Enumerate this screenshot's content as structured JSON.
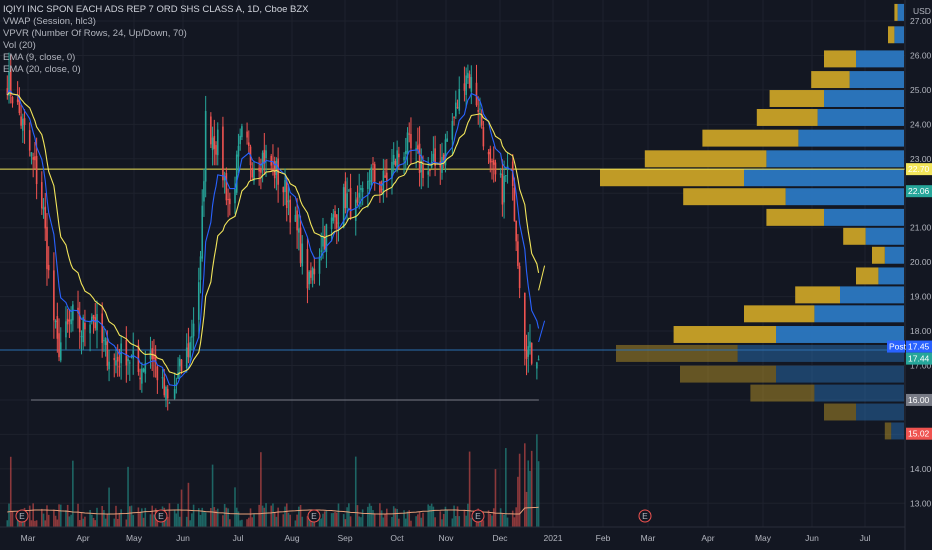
{
  "legend": {
    "title": "IQIYI INC SPON EACH ADS REP 7 ORD SHS CLASS A, 1D, Cboe BZX",
    "indicators": [
      "VWAP (Session, hlc3)",
      "VPVR (Number Of Rows, 24, Up/Down, 70)",
      "Vol (20)",
      "EMA (9, close, 0)",
      "EMA (20, close, 0)"
    ]
  },
  "chart_data": {
    "type": "candlestick",
    "title": "IQIYI INC SPON EACH ADS REP 7 ORD SHS CLASS A, 1D, Cboe BZX",
    "currency": "USD",
    "ylim": [
      12.5,
      27.5
    ],
    "y_ticks": [
      "13.00",
      "14.00",
      "15.00",
      "16.00",
      "17.00",
      "18.00",
      "19.00",
      "20.00",
      "21.00",
      "22.00",
      "23.00",
      "24.00",
      "25.00",
      "26.00",
      "27.00"
    ],
    "x_ticks": [
      "Mar",
      "Apr",
      "May",
      "Jun",
      "Jul",
      "Aug",
      "Sep",
      "Oct",
      "Nov",
      "Dec",
      "2021",
      "Feb",
      "Mar",
      "Apr",
      "May",
      "Jun",
      "Jul"
    ],
    "earnings_markers": [
      "Mar",
      "May",
      "Aug",
      "Nov",
      "Feb"
    ],
    "price_path": [
      [
        "Feb 18",
        25.3
      ],
      [
        "Feb 25",
        24.3
      ],
      [
        "Mar 2",
        23.2
      ],
      [
        "Mar 6",
        22.5
      ],
      [
        "Mar 10",
        21.4
      ],
      [
        "Mar 13",
        19.6
      ],
      [
        "Mar 18",
        17.5
      ],
      [
        "Mar 23",
        17.9
      ],
      [
        "Mar 27",
        18.4
      ],
      [
        "Apr 1",
        18.0
      ],
      [
        "Apr 7",
        18.6
      ],
      [
        "Apr 13",
        17.6
      ],
      [
        "Apr 20",
        17.1
      ],
      [
        "Apr 27",
        17.4
      ],
      [
        "May 4",
        16.8
      ],
      [
        "May 11",
        17.5
      ],
      [
        "May 18",
        16.3
      ],
      [
        "May 22",
        15.8
      ],
      [
        "May 28",
        16.8
      ],
      [
        "Jun 3",
        17.6
      ],
      [
        "Jun 9",
        19.9
      ],
      [
        "Jun 12",
        24.1
      ],
      [
        "Jun 19",
        23.4
      ],
      [
        "Jun 26",
        21.6
      ],
      [
        "Jul 3",
        23.6
      ],
      [
        "Jul 9",
        22.9
      ],
      [
        "Jul 16",
        23.1
      ],
      [
        "Jul 23",
        22.6
      ],
      [
        "Jul 30",
        21.8
      ],
      [
        "Aug 6",
        20.4
      ],
      [
        "Aug 11",
        19.3
      ],
      [
        "Aug 18",
        20.6
      ],
      [
        "Aug 25",
        21.2
      ],
      [
        "Sep 1",
        21.9
      ],
      [
        "Sep 8",
        21.4
      ],
      [
        "Sep 15",
        22.6
      ],
      [
        "Sep 22",
        22.2
      ],
      [
        "Sep 29",
        22.9
      ],
      [
        "Oct 6",
        23.4
      ],
      [
        "Oct 13",
        22.9
      ],
      [
        "Oct 20",
        22.6
      ],
      [
        "Oct 27",
        23.1
      ],
      [
        "Nov 3",
        24.2
      ],
      [
        "Nov 10",
        25.6
      ],
      [
        "Nov 17",
        24.6
      ],
      [
        "Nov 24",
        22.6
      ],
      [
        "Dec 1",
        22.1
      ],
      [
        "Dec 4",
        22.6
      ],
      [
        "Dec 8",
        21.6
      ],
      [
        "Dec 11",
        19.6
      ],
      [
        "Dec 14",
        17.8
      ],
      [
        "Dec 17",
        17.3
      ],
      [
        "Dec 22",
        17.45
      ]
    ],
    "ema9_end": 18.3,
    "ema20_end": 19.9,
    "horizontal_lines": [
      {
        "value": 22.7,
        "color": "#f2e55a"
      },
      {
        "value": 17.45,
        "color": "#2a6fb0"
      }
    ],
    "position": {
      "entry": 16.0,
      "target": 22.06,
      "stop": 15.02,
      "start": "Dec 21",
      "end": "Mar 1"
    },
    "price_tags": [
      {
        "value": 22.7,
        "label": "22.70",
        "bg": "#f2e55a",
        "fg": "#131722"
      },
      {
        "value": 22.06,
        "label": "22.06",
        "bg": "#26a69a",
        "fg": "#ffffff"
      },
      {
        "value": 17.55,
        "label": "17.45",
        "bg": "#2962ff",
        "fg": "#ffffff",
        "prefix": "Post"
      },
      {
        "value": 17.2,
        "label": "17.44",
        "bg": "#26a69a",
        "fg": "#ffffff"
      },
      {
        "value": 16.0,
        "label": "16.00",
        "bg": "#787b86",
        "fg": "#ffffff"
      },
      {
        "value": 15.02,
        "label": "15.02",
        "bg": "#ef5350",
        "fg": "#ffffff"
      }
    ],
    "volume_profile": [
      {
        "price": 27.25,
        "up": 0.02,
        "down": 0.01
      },
      {
        "price": 26.6,
        "up": 0.03,
        "down": 0.02
      },
      {
        "price": 25.9,
        "up": 0.15,
        "down": 0.1
      },
      {
        "price": 25.3,
        "up": 0.17,
        "down": 0.12
      },
      {
        "price": 24.75,
        "up": 0.25,
        "down": 0.17
      },
      {
        "price": 24.2,
        "up": 0.27,
        "down": 0.19
      },
      {
        "price": 23.6,
        "up": 0.33,
        "down": 0.3
      },
      {
        "price": 23.0,
        "up": 0.43,
        "down": 0.38
      },
      {
        "price": 22.45,
        "up": 0.5,
        "down": 0.45
      },
      {
        "price": 21.9,
        "up": 0.37,
        "down": 0.32
      },
      {
        "price": 21.3,
        "up": 0.25,
        "down": 0.18
      },
      {
        "price": 20.75,
        "up": 0.12,
        "down": 0.07
      },
      {
        "price": 20.2,
        "up": 0.06,
        "down": 0.04
      },
      {
        "price": 19.6,
        "up": 0.08,
        "down": 0.07
      },
      {
        "price": 19.05,
        "up": 0.2,
        "down": 0.14
      },
      {
        "price": 18.5,
        "up": 0.28,
        "down": 0.22
      },
      {
        "price": 17.9,
        "up": 0.4,
        "down": 0.32
      },
      {
        "price": 17.35,
        "up": 0.52,
        "down": 0.38
      },
      {
        "price": 16.75,
        "up": 0.4,
        "down": 0.3
      },
      {
        "price": 16.2,
        "up": 0.28,
        "down": 0.2
      },
      {
        "price": 15.65,
        "up": 0.15,
        "down": 0.1
      },
      {
        "price": 15.1,
        "up": 0.04,
        "down": 0.02
      }
    ]
  },
  "colors": {
    "background": "#131722",
    "up": "#26a69a",
    "down": "#ef5350",
    "ema9": "#2962ff",
    "ema20": "#f2e55a",
    "vwap": "#fbc02d",
    "profile_up": "#2b78c2",
    "profile_down": "#c9a227",
    "target_zone": "#1f4f4d",
    "stop_zone": "#5a2528",
    "grid": "#1e222d"
  }
}
